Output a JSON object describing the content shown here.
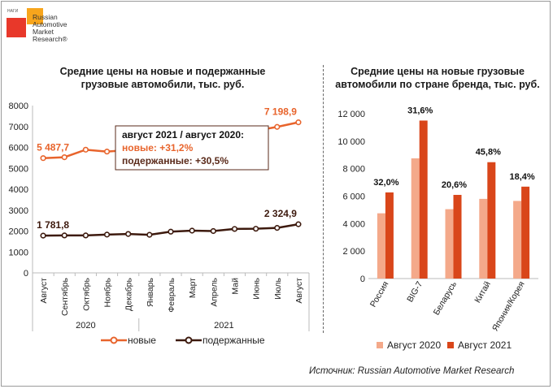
{
  "logo": {
    "small": "НАГИ",
    "text": "Russian\nAutomotive\nMarket\nResearch®"
  },
  "source": "Источник: Russian Automotive Market Research",
  "chart_data": [
    {
      "type": "line",
      "title": "Средние цены на новые и подержанные\nгрузовые автомобили,  тыс. руб.",
      "categories": [
        "Август",
        "Сентябрь",
        "Октябрь",
        "Ноябрь",
        "Декабрь",
        "Январь",
        "Февраль",
        "Март",
        "Апрель",
        "Май",
        "Июнь",
        "Июль",
        "Август"
      ],
      "years": [
        {
          "label": "2020",
          "from": 0,
          "to": 4
        },
        {
          "label": "2021",
          "from": 5,
          "to": 12
        }
      ],
      "ylim": [
        0,
        8000
      ],
      "yticks": [
        "0",
        "1000",
        "2000",
        "3000",
        "4000",
        "5000",
        "6000",
        "7000",
        "8000"
      ],
      "series": [
        {
          "name": "новые",
          "color": "#e8642c",
          "values": [
            5487.7,
            5530,
            5890,
            5800,
            5870,
            5900,
            6000,
            6150,
            6300,
            6550,
            6800,
            6980,
            7198.9
          ],
          "labels": {
            "0": "5 487,7",
            "12": "7 198,9"
          }
        },
        {
          "name": "подержанные",
          "color": "#3d1a0e",
          "values": [
            1781.8,
            1790,
            1790,
            1830,
            1860,
            1820,
            1970,
            2020,
            2000,
            2100,
            2110,
            2150,
            2324.9
          ],
          "labels": {
            "0": "1 781,8",
            "12": "2 324,9"
          }
        }
      ],
      "annotation": {
        "line1": "август 2021 / август 2020:",
        "line2": "новые:  +31,2%",
        "line3": "подержанные: +30,5%"
      }
    },
    {
      "type": "bar",
      "title": "Средние цены на новые грузовые\nавтомобили по стране бренда, тыс. руб.",
      "categories": [
        "Россия",
        "BIG-7",
        "Беларусь",
        "Китай",
        "Япония/Корея"
      ],
      "ylim": [
        0,
        12000
      ],
      "yticks": [
        "0",
        "2 000",
        "4 000",
        "6 000",
        "8 000",
        "10 000",
        "12 000"
      ],
      "series": [
        {
          "name": "Август 2020",
          "color": "#f4a98a",
          "values": [
            4750,
            8750,
            5050,
            5800,
            5650
          ]
        },
        {
          "name": "Август 2021",
          "color": "#d9461a",
          "values": [
            6270,
            11500,
            6090,
            8470,
            6690
          ]
        }
      ],
      "data_labels": [
        "32,0%",
        "31,6%",
        "20,6%",
        "45,8%",
        "18,4%"
      ]
    }
  ]
}
